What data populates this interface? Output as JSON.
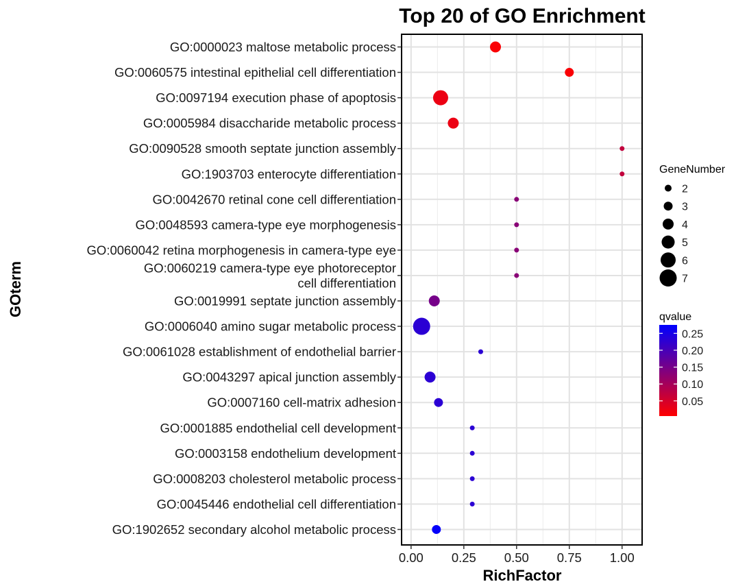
{
  "chart_data": {
    "type": "scatter",
    "title": "Top 20 of GO Enrichment",
    "xlabel": "RichFactor",
    "ylabel": "GOterm",
    "xlim": [
      -0.045,
      1.095
    ],
    "xticks": [
      "0.00",
      "0.25",
      "0.50",
      "0.75",
      "1.00"
    ],
    "xtick_values": [
      0,
      0.25,
      0.5,
      0.75,
      1.0
    ],
    "grid": true,
    "terms": [
      {
        "label": [
          "GO:0000023 maltose metabolic process"
        ],
        "x": 0.4,
        "genes": 4,
        "q": 0.01
      },
      {
        "label": [
          "GO:0060575 intestinal epithelial cell differentiation"
        ],
        "x": 0.75,
        "genes": 3,
        "q": 0.01
      },
      {
        "label": [
          "GO:0097194 execution phase of apoptosis"
        ],
        "x": 0.14,
        "genes": 6,
        "q": 0.025
      },
      {
        "label": [
          "GO:0005984 disaccharide metabolic process"
        ],
        "x": 0.2,
        "genes": 4,
        "q": 0.025
      },
      {
        "label": [
          "GO:0090528 smooth septate junction assembly"
        ],
        "x": 1.0,
        "genes": 1,
        "q": 0.07
      },
      {
        "label": [
          "GO:1903703 enterocyte differentiation"
        ],
        "x": 1.0,
        "genes": 1,
        "q": 0.07
      },
      {
        "label": [
          "GO:0042670 retinal cone cell differentiation"
        ],
        "x": 0.5,
        "genes": 1,
        "q": 0.13
      },
      {
        "label": [
          "GO:0048593 camera-type eye morphogenesis"
        ],
        "x": 0.5,
        "genes": 1,
        "q": 0.13
      },
      {
        "label": [
          "GO:0060042 retina morphogenesis in camera-type eye"
        ],
        "x": 0.5,
        "genes": 1,
        "q": 0.13
      },
      {
        "label": [
          "GO:0060219 camera-type eye photoreceptor",
          "cell differentiation"
        ],
        "x": 0.5,
        "genes": 1,
        "q": 0.13
      },
      {
        "label": [
          "GO:0019991 septate junction assembly"
        ],
        "x": 0.11,
        "genes": 4,
        "q": 0.15
      },
      {
        "label": [
          "GO:0006040 amino sugar metabolic process"
        ],
        "x": 0.05,
        "genes": 7,
        "q": 0.23
      },
      {
        "label": [
          "GO:0061028 establishment of endothelial barrier"
        ],
        "x": 0.33,
        "genes": 1,
        "q": 0.23
      },
      {
        "label": [
          "GO:0043297 apical junction assembly"
        ],
        "x": 0.09,
        "genes": 4,
        "q": 0.23
      },
      {
        "label": [
          "GO:0007160 cell-matrix adhesion"
        ],
        "x": 0.13,
        "genes": 3,
        "q": 0.23
      },
      {
        "label": [
          "GO:0001885 endothelial cell development"
        ],
        "x": 0.29,
        "genes": 1,
        "q": 0.23
      },
      {
        "label": [
          "GO:0003158 endothelium development"
        ],
        "x": 0.29,
        "genes": 1,
        "q": 0.23
      },
      {
        "label": [
          "GO:0008203 cholesterol metabolic process"
        ],
        "x": 0.29,
        "genes": 1,
        "q": 0.23
      },
      {
        "label": [
          "GO:0045446 endothelial cell differentiation"
        ],
        "x": 0.29,
        "genes": 1,
        "q": 0.23
      },
      {
        "label": [
          "GO:1902652 secondary alcohol metabolic process"
        ],
        "x": 0.12,
        "genes": 3,
        "q": 0.27
      }
    ],
    "size_legend": {
      "title": "GeneNumber",
      "values": [
        2,
        3,
        4,
        5,
        6,
        7
      ],
      "labels": [
        "2",
        "3",
        "4",
        "5",
        "6",
        "7"
      ]
    },
    "color_legend": {
      "title": "qvalue",
      "range": [
        0.005,
        0.275
      ],
      "low_color": "#ff0000",
      "high_color": "#0000ff",
      "tick_values": [
        0.05,
        0.1,
        0.15,
        0.2,
        0.25
      ],
      "tick_labels": [
        "0.05",
        "0.10",
        "0.15",
        "0.20",
        "0.25"
      ]
    }
  }
}
